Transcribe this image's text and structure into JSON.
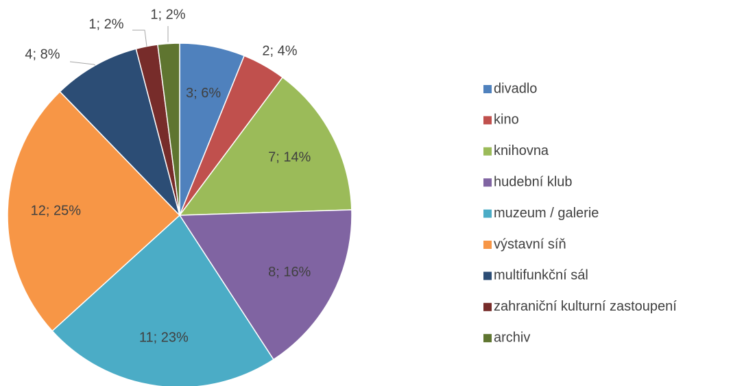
{
  "chart_data": {
    "type": "pie",
    "categories": [
      "divadlo",
      "kino",
      "knihovna",
      "hudební klub",
      "muzeum / galerie",
      "výstavní síň",
      "multifunkční sál",
      "zahraniční kulturní zastoupení",
      "archiv"
    ],
    "values": [
      3,
      2,
      7,
      8,
      11,
      12,
      4,
      1,
      1
    ],
    "value_labels": [
      "3; 6%",
      "2; 4%",
      "7; 14%",
      "8; 16%",
      "11; 23%",
      "12; 25%",
      "4; 8%",
      "1; 2%",
      "1; 2%"
    ],
    "colors": [
      "#4f81bd",
      "#c0504d",
      "#9bbb59",
      "#8064a2",
      "#4bacc6",
      "#f79646",
      "#2c4d75",
      "#772c2a",
      "#5f7530"
    ],
    "legend": "right"
  }
}
